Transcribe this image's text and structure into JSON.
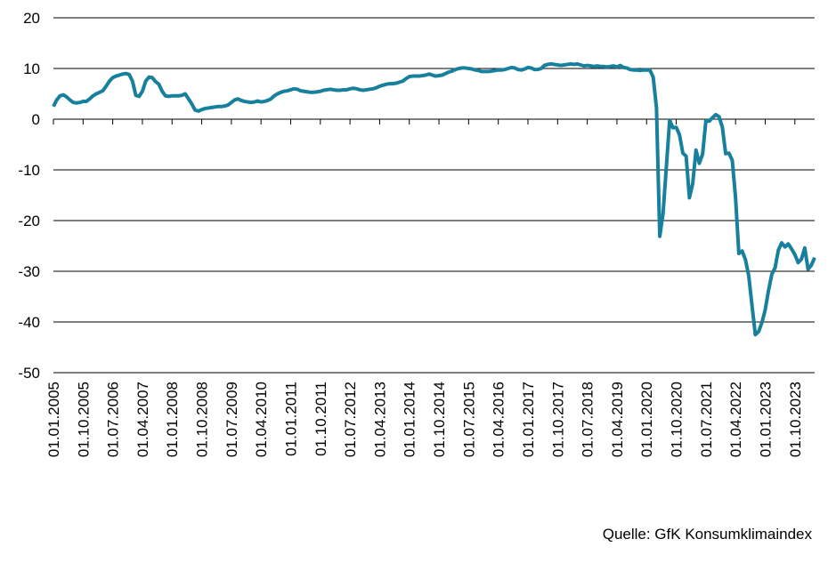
{
  "chart_data": {
    "type": "line",
    "source": "Quelle: GfK Konsumklimaindex",
    "categories": [
      "01.01.2005",
      null,
      null,
      null,
      null,
      null,
      null,
      null,
      null,
      "01.10.2005",
      null,
      null,
      null,
      null,
      null,
      null,
      null,
      null,
      "01.07.2006",
      null,
      null,
      null,
      null,
      null,
      null,
      null,
      null,
      "01.04.2007",
      null,
      null,
      null,
      null,
      null,
      null,
      null,
      null,
      "01.01.2008",
      null,
      null,
      null,
      null,
      null,
      null,
      null,
      null,
      "01.10.2008",
      null,
      null,
      null,
      null,
      null,
      null,
      null,
      null,
      "01.07.2009",
      null,
      null,
      null,
      null,
      null,
      null,
      null,
      null,
      "01.04.2010",
      null,
      null,
      null,
      null,
      null,
      null,
      null,
      null,
      "01.01.2011",
      null,
      null,
      null,
      null,
      null,
      null,
      null,
      null,
      "01.10.2011",
      null,
      null,
      null,
      null,
      null,
      null,
      null,
      null,
      "01.07.2012",
      null,
      null,
      null,
      null,
      null,
      null,
      null,
      null,
      "01.04.2013",
      null,
      null,
      null,
      null,
      null,
      null,
      null,
      null,
      "01.01.2014",
      null,
      null,
      null,
      null,
      null,
      null,
      null,
      null,
      "01.10.2014",
      null,
      null,
      null,
      null,
      null,
      null,
      null,
      null,
      "01.07.2015",
      null,
      null,
      null,
      null,
      null,
      null,
      null,
      null,
      "01.04.2016",
      null,
      null,
      null,
      null,
      null,
      null,
      null,
      null,
      "01.01.2017",
      null,
      null,
      null,
      null,
      null,
      null,
      null,
      null,
      "01.10.2017",
      null,
      null,
      null,
      null,
      null,
      null,
      null,
      null,
      "01.07.2018",
      null,
      null,
      null,
      null,
      null,
      null,
      null,
      null,
      "01.04.2019",
      null,
      null,
      null,
      null,
      null,
      null,
      null,
      null,
      "01.01.2020",
      null,
      null,
      null,
      null,
      null,
      null,
      null,
      null,
      "01.10.2020",
      null,
      null,
      null,
      null,
      null,
      null,
      null,
      null,
      "01.07.2021",
      null,
      null,
      null,
      null,
      null,
      null,
      null,
      null,
      "01.04.2022",
      null,
      null,
      null,
      null,
      null,
      null,
      null,
      null,
      "01.01.2023",
      null,
      null,
      null,
      null,
      null,
      null,
      null,
      null,
      "01.10.2023",
      null,
      null,
      null,
      null,
      null,
      null
    ],
    "values": [
      2.5,
      3.8,
      4.6,
      4.8,
      4.4,
      3.8,
      3.3,
      3.2,
      3.3,
      3.5,
      3.5,
      4.0,
      4.6,
      5.0,
      5.3,
      5.6,
      6.5,
      7.5,
      8.2,
      8.5,
      8.7,
      8.9,
      9.0,
      8.8,
      7.5,
      4.7,
      4.5,
      5.5,
      7.5,
      8.3,
      8.2,
      7.4,
      6.9,
      5.5,
      4.6,
      4.5,
      4.6,
      4.6,
      4.6,
      4.7,
      5.0,
      4.0,
      3.0,
      1.8,
      1.6,
      1.9,
      2.1,
      2.2,
      2.3,
      2.4,
      2.5,
      2.5,
      2.6,
      2.8,
      3.3,
      3.8,
      4.0,
      3.7,
      3.5,
      3.4,
      3.3,
      3.4,
      3.6,
      3.4,
      3.5,
      3.7,
      4.0,
      4.6,
      5.0,
      5.3,
      5.5,
      5.6,
      5.8,
      6.0,
      5.9,
      5.6,
      5.5,
      5.4,
      5.3,
      5.3,
      5.4,
      5.5,
      5.7,
      5.8,
      5.9,
      5.8,
      5.7,
      5.7,
      5.8,
      5.8,
      6.0,
      6.1,
      6.0,
      5.8,
      5.7,
      5.8,
      5.9,
      6.0,
      6.2,
      6.5,
      6.7,
      6.9,
      7.0,
      7.0,
      7.1,
      7.3,
      7.5,
      8.0,
      8.4,
      8.5,
      8.5,
      8.5,
      8.6,
      8.7,
      8.9,
      8.7,
      8.5,
      8.6,
      8.7,
      9.0,
      9.3,
      9.5,
      9.8,
      10.0,
      10.1,
      10.1,
      10.0,
      9.9,
      9.7,
      9.6,
      9.4,
      9.4,
      9.4,
      9.5,
      9.6,
      9.7,
      9.7,
      9.8,
      10.0,
      10.2,
      10.1,
      9.8,
      9.7,
      9.9,
      10.2,
      10.1,
      9.8,
      9.8,
      10.0,
      10.6,
      10.8,
      10.9,
      10.8,
      10.7,
      10.6,
      10.7,
      10.8,
      10.9,
      10.8,
      10.9,
      10.7,
      10.5,
      10.6,
      10.5,
      10.4,
      10.5,
      10.4,
      10.4,
      10.3,
      10.4,
      10.5,
      10.3,
      10.6,
      10.2,
      10.1,
      9.8,
      9.7,
      9.7,
      9.6,
      9.7,
      9.7,
      9.7,
      8.3,
      2.3,
      -23.1,
      -18.6,
      -9.4,
      -0.2,
      -1.7,
      -1.6,
      -3.1,
      -6.7,
      -7.3,
      -15.5,
      -12.7,
      -6.1,
      -8.7,
      -6.9,
      -0.3,
      -0.4,
      0.3,
      0.9,
      0.5,
      -1.6,
      -6.8,
      -6.7,
      -8.1,
      -15.5,
      -26.5,
      -26.0,
      -27.7,
      -30.9,
      -36.8,
      -42.5,
      -41.9,
      -40.1,
      -37.6,
      -33.8,
      -30.6,
      -29.3,
      -25.8,
      -24.4,
      -25.2,
      -24.6,
      -25.6,
      -26.7,
      -28.3,
      -27.6,
      -25.4,
      -29.6,
      -28.8,
      -27.3
    ],
    "color": "#17809c",
    "ylim": [
      -50,
      20
    ],
    "yticks": [
      -50,
      -40,
      -30,
      -20,
      -10,
      0,
      10,
      20
    ],
    "grid": true
  }
}
